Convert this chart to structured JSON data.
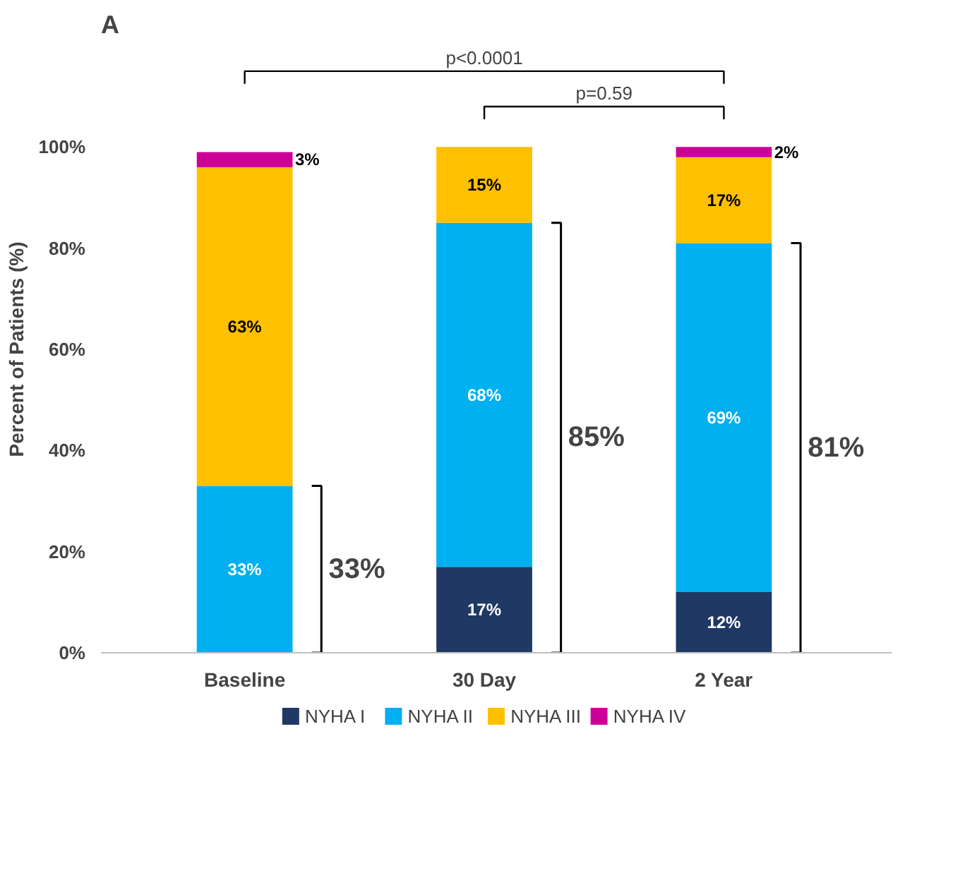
{
  "chart_data": {
    "type": "bar",
    "stacked": true,
    "title": "A",
    "ylabel": "Percent of Patients (%)",
    "categories": [
      "Baseline",
      "30 Day",
      "2 Year"
    ],
    "series": [
      {
        "name": "NYHA I",
        "color": "#1f3864",
        "values": [
          0,
          17,
          12
        ],
        "value_labels": [
          null,
          "17%",
          "12%"
        ]
      },
      {
        "name": "NYHA II",
        "color": "#00b0f0",
        "values": [
          33,
          68,
          69
        ],
        "value_labels": [
          "33%",
          "68%",
          "69%"
        ]
      },
      {
        "name": "NYHA III",
        "color": "#ffc000",
        "values": [
          63,
          15,
          17
        ],
        "value_labels": [
          "63%",
          "15%",
          "17%"
        ]
      },
      {
        "name": "NYHA IV",
        "color": "#cc0099",
        "values": [
          3,
          0,
          2
        ],
        "value_labels": [
          "3%",
          null,
          "2%"
        ]
      }
    ],
    "ylim": [
      0,
      100
    ],
    "yticks": [
      {
        "value": 0,
        "label": "0%"
      },
      {
        "value": 20,
        "label": "20%"
      },
      {
        "value": 40,
        "label": "40%"
      },
      {
        "value": 60,
        "label": "60%"
      },
      {
        "value": 80,
        "label": "80%"
      },
      {
        "value": 100,
        "label": "100%"
      }
    ],
    "grid": false,
    "legend": "bottom",
    "annotations": [
      "p<0.0001",
      "p=0.59",
      "33%",
      "85%",
      "81%"
    ]
  }
}
